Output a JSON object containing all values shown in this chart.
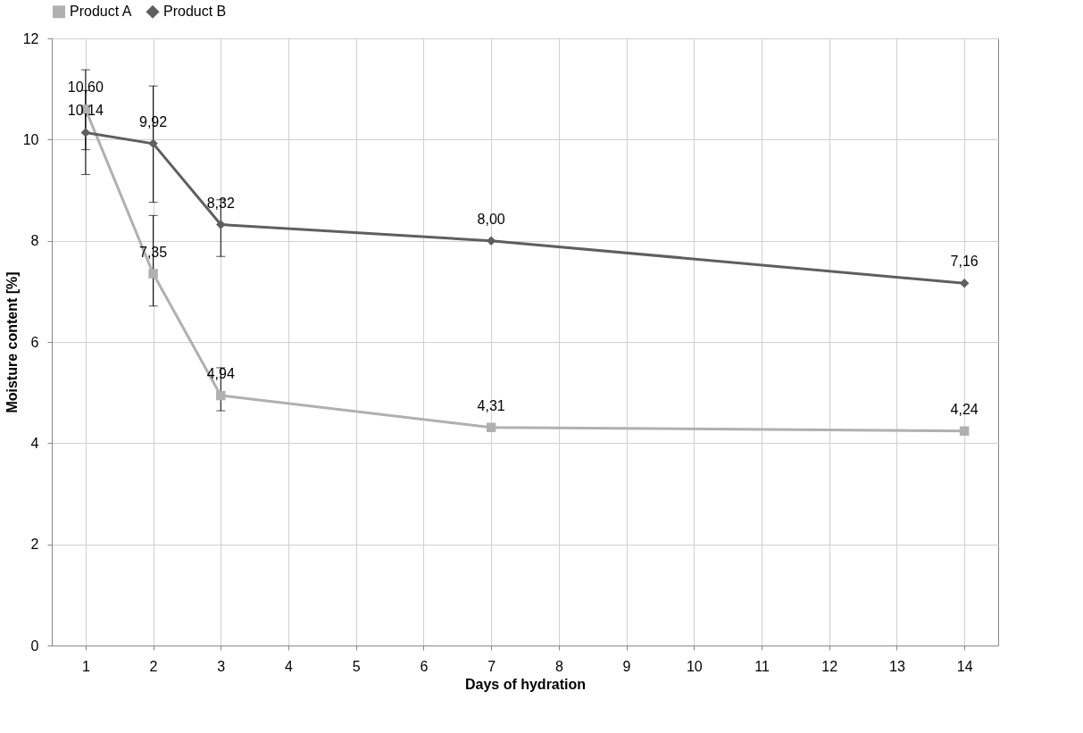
{
  "chart_data": {
    "type": "line",
    "xlabel": "Days of hydration",
    "ylabel": "Moisture content [%]",
    "x": [
      1,
      2,
      3,
      7,
      14
    ],
    "xlim": [
      0.5,
      14.5
    ],
    "xticks": [
      1,
      2,
      3,
      4,
      5,
      6,
      7,
      8,
      9,
      10,
      11,
      12,
      13,
      14
    ],
    "ylim": [
      0,
      12
    ],
    "yticks": [
      0,
      2,
      4,
      6,
      8,
      10,
      12
    ],
    "grid": true,
    "legend": "top",
    "line_style": "solid",
    "series": [
      {
        "name": "Product A",
        "color": "#b0b0b0",
        "marker": "square",
        "values": [
          10.6,
          7.35,
          4.94,
          4.31,
          4.24
        ],
        "errors": [
          [
            9.8,
            11.38
          ],
          [
            6.71,
            8.5
          ],
          [
            4.64,
            5.49
          ],
          null,
          null
        ],
        "value_labels": [
          "10,60",
          "7,35",
          "4,94",
          "4,31",
          "4,24"
        ]
      },
      {
        "name": "Product B",
        "color": "#5f5f5f",
        "marker": "diamond",
        "values": [
          10.14,
          9.92,
          8.32,
          8.0,
          7.16
        ],
        "errors": [
          [
            9.31,
            10.97
          ],
          [
            8.76,
            11.06
          ],
          [
            7.69,
            8.81
          ],
          null,
          null
        ],
        "value_labels": [
          "10,14",
          "9,92",
          "8,32",
          "8,00",
          "7,16"
        ]
      }
    ]
  }
}
